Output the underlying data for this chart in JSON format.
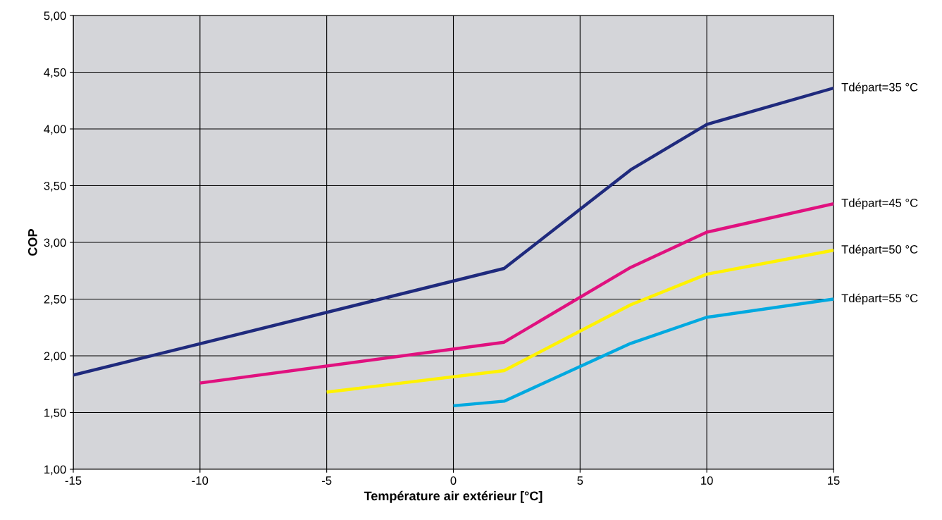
{
  "chart_data": {
    "type": "line",
    "xlabel": "Température air extérieur [°C]",
    "ylabel": "COP",
    "xlim": [
      -15,
      15
    ],
    "xticks": [
      -15,
      -10,
      -5,
      0,
      5,
      10,
      15
    ],
    "ylim": [
      1,
      5
    ],
    "yticks": [
      {
        "value": 1,
        "label": "1,00"
      },
      {
        "value": 1.5,
        "label": "1,50"
      },
      {
        "value": 2,
        "label": "2,00"
      },
      {
        "value": 2.5,
        "label": "2,50"
      },
      {
        "value": 3,
        "label": "3,00"
      },
      {
        "value": 3.5,
        "label": "3,50"
      },
      {
        "value": 4,
        "label": "4,00"
      },
      {
        "value": 4.5,
        "label": "4,50"
      },
      {
        "value": 5,
        "label": "5,00"
      }
    ],
    "grid": true,
    "marker": "none",
    "line_style": "solid",
    "series": [
      {
        "name": "Tdépart=35 °C",
        "color": "#1f2a7d",
        "x": [
          -15,
          2,
          7,
          10,
          15
        ],
        "values": [
          1.83,
          2.77,
          3.64,
          4.04,
          4.36
        ]
      },
      {
        "name": "Tdépart=45 °C",
        "color": "#e0117f",
        "x": [
          -10,
          2,
          7,
          10,
          15
        ],
        "values": [
          1.76,
          2.12,
          2.78,
          3.09,
          3.34
        ]
      },
      {
        "name": "Tdépart=50 °C",
        "color": "#fff200",
        "x": [
          -5,
          2,
          7,
          10,
          15
        ],
        "values": [
          1.68,
          1.87,
          2.45,
          2.72,
          2.93
        ]
      },
      {
        "name": "Tdépart=55 °C",
        "color": "#00a9e0",
        "x": [
          0,
          2,
          7,
          10,
          15
        ],
        "values": [
          1.56,
          1.6,
          2.11,
          2.34,
          2.5
        ]
      }
    ]
  }
}
